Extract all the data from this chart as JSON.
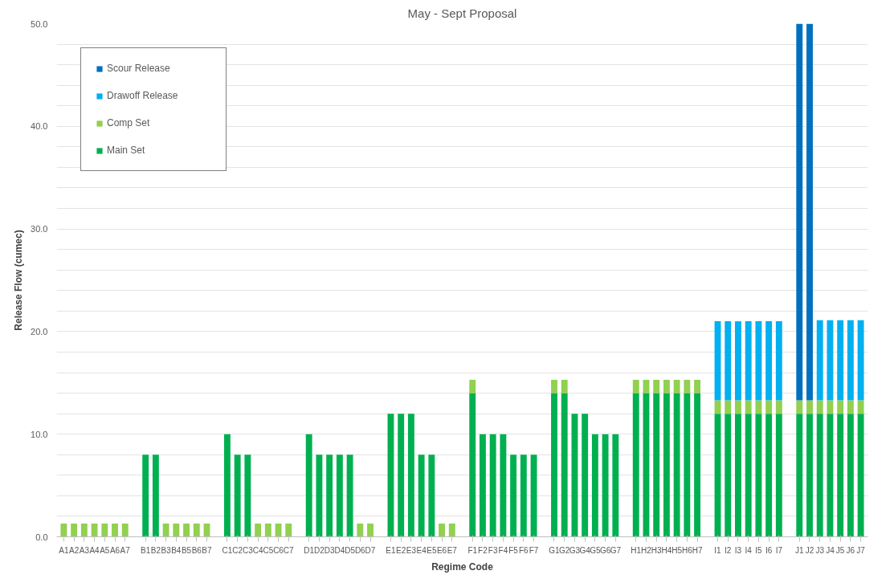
{
  "chart_data": {
    "type": "bar",
    "stacked": true,
    "title": "May - Sept Proposal",
    "xlabel": "Regime Code",
    "ylabel": "Release Flow (cumec)",
    "categories": [
      "A1",
      "A2",
      "A3",
      "A4",
      "A5",
      "A6",
      "A7",
      null,
      "B1",
      "B2",
      "B3",
      "B4",
      "B5",
      "B6",
      "B7",
      null,
      "C1",
      "C2",
      "C3",
      "C4",
      "C5",
      "C6",
      "C7",
      null,
      "D1",
      "D2",
      "D3",
      "D4",
      "D5",
      "D6",
      "D7",
      null,
      "E1",
      "E2",
      "E3",
      "E4",
      "E5",
      "E6",
      "E7",
      null,
      "F1",
      "F2",
      "F3",
      "F4",
      "F5",
      "F6",
      "F7",
      null,
      "G1",
      "G2",
      "G3",
      "G4",
      "G5",
      "G6",
      "G7",
      null,
      "H1",
      "H2",
      "H3",
      "H4",
      "H5",
      "H6",
      "H7",
      null,
      "I1",
      "I2",
      "I3",
      "I4",
      "I5",
      "I6",
      "I7",
      null,
      "J1",
      "J2",
      "J3",
      "J4",
      "J5",
      "J6",
      "J7"
    ],
    "series": [
      {
        "name": "Main Set",
        "color": "#00b050",
        "values": [
          null,
          null,
          null,
          null,
          null,
          null,
          null,
          null,
          8,
          8,
          null,
          null,
          null,
          null,
          null,
          null,
          10,
          8,
          8,
          null,
          null,
          null,
          null,
          null,
          10,
          8,
          8,
          8,
          8,
          null,
          null,
          null,
          12,
          12,
          12,
          8,
          8,
          null,
          null,
          null,
          14,
          10,
          10,
          10,
          8,
          8,
          8,
          null,
          14,
          14,
          12,
          12,
          10,
          10,
          10,
          null,
          14,
          14,
          14,
          14,
          14,
          14,
          14,
          null,
          12,
          12,
          12,
          12,
          12,
          12,
          12,
          null,
          12,
          12,
          12,
          12,
          12,
          12,
          12
        ]
      },
      {
        "name": "Comp Set",
        "color": "#92d050",
        "values": [
          1.3,
          1.3,
          1.3,
          1.3,
          1.3,
          1.3,
          1.3,
          null,
          null,
          null,
          1.3,
          1.3,
          1.3,
          1.3,
          1.3,
          null,
          null,
          null,
          null,
          1.3,
          1.3,
          1.3,
          1.3,
          null,
          null,
          null,
          null,
          null,
          null,
          1.3,
          1.3,
          null,
          null,
          null,
          null,
          null,
          null,
          1.3,
          1.3,
          null,
          1.3,
          null,
          null,
          null,
          null,
          null,
          null,
          null,
          1.3,
          1.3,
          null,
          null,
          null,
          null,
          null,
          null,
          1.3,
          1.3,
          1.3,
          1.3,
          1.3,
          1.3,
          1.3,
          null,
          1.3,
          1.3,
          1.3,
          1.3,
          1.3,
          1.3,
          1.3,
          null,
          1.3,
          1.3,
          1.3,
          1.3,
          1.3,
          1.3,
          1.3
        ]
      },
      {
        "name": "Drawoff Release",
        "color": "#00b0f0",
        "values": [
          null,
          null,
          null,
          null,
          null,
          null,
          null,
          null,
          null,
          null,
          null,
          null,
          null,
          null,
          null,
          null,
          null,
          null,
          null,
          null,
          null,
          null,
          null,
          null,
          null,
          null,
          null,
          null,
          null,
          null,
          null,
          null,
          null,
          null,
          null,
          null,
          null,
          null,
          null,
          null,
          null,
          null,
          null,
          null,
          null,
          null,
          null,
          null,
          null,
          null,
          null,
          null,
          null,
          null,
          null,
          null,
          null,
          null,
          null,
          null,
          null,
          null,
          null,
          null,
          7.7,
          7.7,
          7.7,
          7.7,
          7.7,
          7.7,
          7.7,
          null,
          null,
          null,
          7.8,
          7.8,
          7.8,
          7.8,
          7.8
        ]
      },
      {
        "name": "Scour Release",
        "color": "#0070c0",
        "values": [
          null,
          null,
          null,
          null,
          null,
          null,
          null,
          null,
          null,
          null,
          null,
          null,
          null,
          null,
          null,
          null,
          null,
          null,
          null,
          null,
          null,
          null,
          null,
          null,
          null,
          null,
          null,
          null,
          null,
          null,
          null,
          null,
          null,
          null,
          null,
          null,
          null,
          null,
          null,
          null,
          null,
          null,
          null,
          null,
          null,
          null,
          null,
          null,
          null,
          null,
          null,
          null,
          null,
          null,
          null,
          null,
          null,
          null,
          null,
          null,
          null,
          null,
          null,
          null,
          null,
          null,
          null,
          null,
          null,
          null,
          null,
          null,
          36.7,
          36.7,
          null,
          null,
          null,
          null,
          null
        ]
      }
    ],
    "ylim": [
      0,
      50
    ],
    "yticks": [
      {
        "value": 0,
        "label": "0.0"
      },
      {
        "value": 2,
        "label": null
      },
      {
        "value": 4,
        "label": null
      },
      {
        "value": 6,
        "label": null
      },
      {
        "value": 8,
        "label": null
      },
      {
        "value": 10,
        "label": "10.0"
      },
      {
        "value": 12,
        "label": null
      },
      {
        "value": 14,
        "label": null
      },
      {
        "value": 16,
        "label": null
      },
      {
        "value": 18,
        "label": null
      },
      {
        "value": 20,
        "label": "20.0"
      },
      {
        "value": 22,
        "label": null
      },
      {
        "value": 24,
        "label": null
      },
      {
        "value": 26,
        "label": null
      },
      {
        "value": 28,
        "label": null
      },
      {
        "value": 30,
        "label": "30.0"
      },
      {
        "value": 32,
        "label": null
      },
      {
        "value": 34,
        "label": null
      },
      {
        "value": 36,
        "label": null
      },
      {
        "value": 38,
        "label": null
      },
      {
        "value": 40,
        "label": "40.0"
      },
      {
        "value": 42,
        "label": null
      },
      {
        "value": 44,
        "label": null
      },
      {
        "value": 46,
        "label": null
      },
      {
        "value": 48,
        "label": null
      },
      {
        "value": 50,
        "label": "50.0"
      }
    ],
    "grid": "y",
    "legend": "top left"
  }
}
